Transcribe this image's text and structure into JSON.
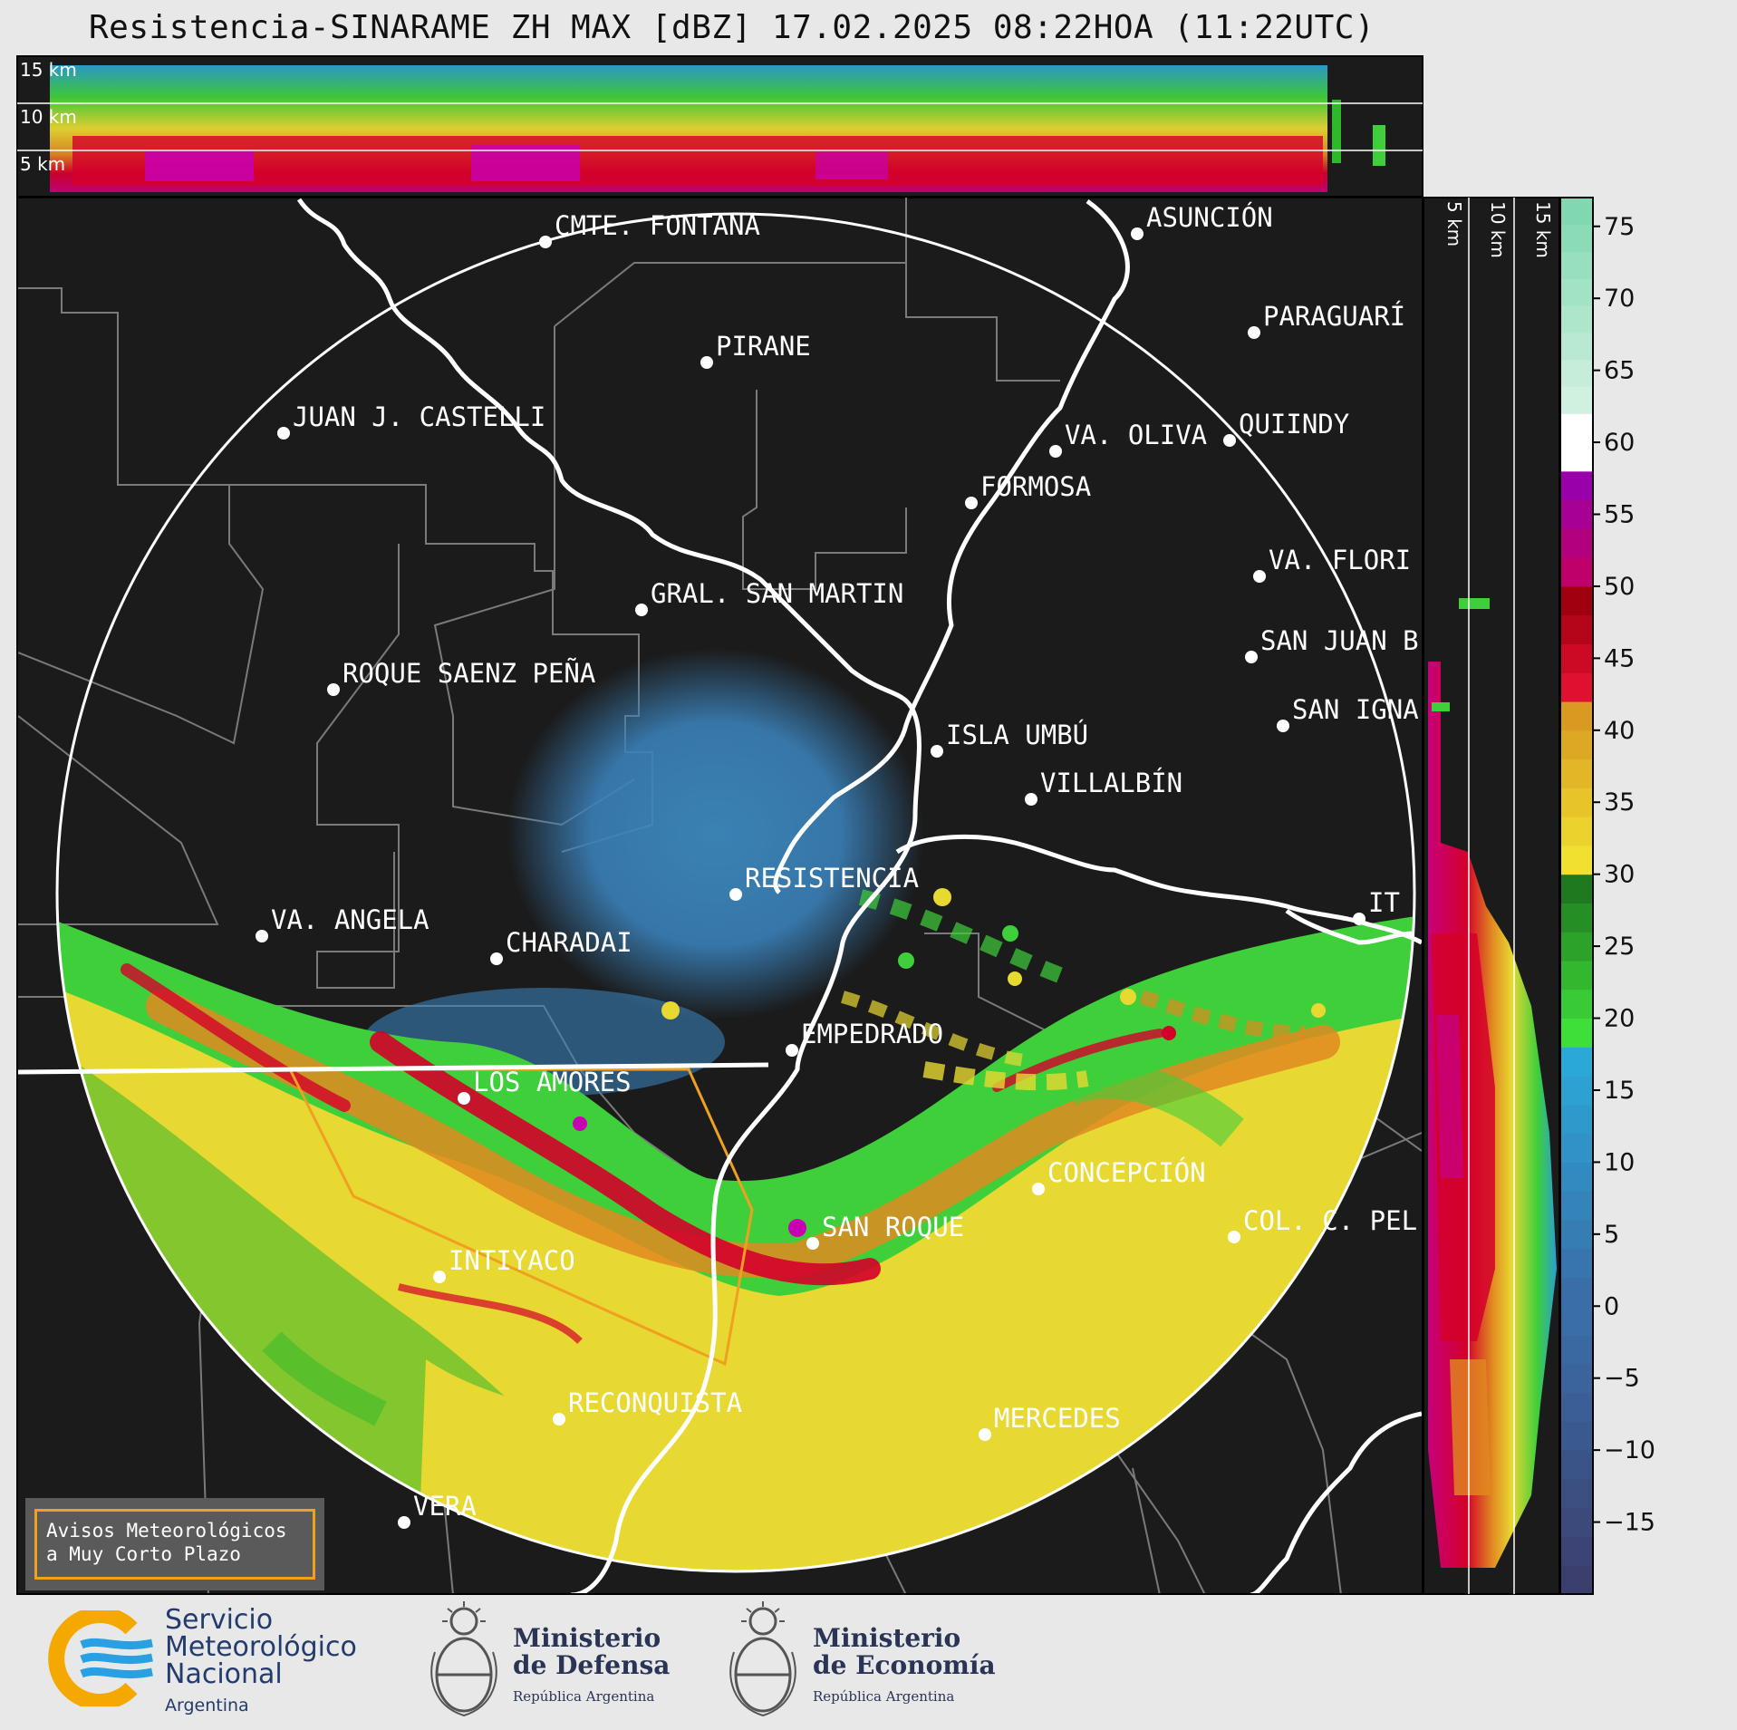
{
  "title": "Resistencia-SINARAME ZH MAX [dBZ] 17.02.2025 08:22HOA (11:22UTC)",
  "top_panel": {
    "height_labels": [
      "15 km",
      "10 km",
      "5 km"
    ]
  },
  "side_panel": {
    "height_labels": [
      "5 km",
      "10 km",
      "15 km"
    ]
  },
  "colorbar": {
    "unit": "dBZ",
    "ticks": [
      "75",
      "70",
      "65",
      "60",
      "55",
      "50",
      "45",
      "40",
      "35",
      "30",
      "25",
      "20",
      "15",
      "10",
      "5",
      "0",
      "−5",
      "−10",
      "−15"
    ],
    "range": [
      -20,
      77
    ],
    "colors": {
      "n20_0": "#3b3f6e",
      "0_18": "#2f7fb8",
      "18_30": "#2fb82a",
      "30_42": "#e8d832",
      "42_50": "#d4002a",
      "50_58": "#d400c8",
      "58_62": "#ffffff",
      "62_77": "#90e0c0"
    }
  },
  "cities": [
    {
      "name": "CMTE. FONTANA"
    },
    {
      "name": "ASUNCIÓN"
    },
    {
      "name": "PARAGUARÍ"
    },
    {
      "name": "PIRANE"
    },
    {
      "name": "QUIINDY"
    },
    {
      "name": "JUAN J. CASTELLI"
    },
    {
      "name": "VA. OLIVA"
    },
    {
      "name": "FORMOSA"
    },
    {
      "name": "VA. FLORI"
    },
    {
      "name": "GRAL. SAN MARTIN"
    },
    {
      "name": "SAN JUAN B"
    },
    {
      "name": "ROQUE SAENZ PEÑA"
    },
    {
      "name": "SAN IGNA"
    },
    {
      "name": "ISLA UMBÚ"
    },
    {
      "name": "VILLALBÍN"
    },
    {
      "name": "RESISTENCIA"
    },
    {
      "name": "VA. ANGELA"
    },
    {
      "name": "CHARADAI"
    },
    {
      "name": "IT"
    },
    {
      "name": "EMPEDRADO"
    },
    {
      "name": "LOS AMORES"
    },
    {
      "name": "CONCEPCIÓN"
    },
    {
      "name": "SAN ROQUE"
    },
    {
      "name": "COL. C. PEL"
    },
    {
      "name": "INTIYACO"
    },
    {
      "name": "RECONQUISTA"
    },
    {
      "name": "MERCEDES"
    },
    {
      "name": "VERA"
    }
  ],
  "avisos": {
    "line1": "Avisos Meteorológicos",
    "line2": "a Muy Corto Plazo"
  },
  "footer": {
    "smn": {
      "line1": "Servicio",
      "line2": "Meteorológico",
      "line3": "Nacional",
      "country": "Argentina"
    },
    "defensa": {
      "line1": "Ministerio",
      "line2": "de Defensa",
      "rep": "República Argentina"
    },
    "economia": {
      "line1": "Ministerio",
      "line2": "de Economía",
      "rep": "República Argentina"
    }
  }
}
